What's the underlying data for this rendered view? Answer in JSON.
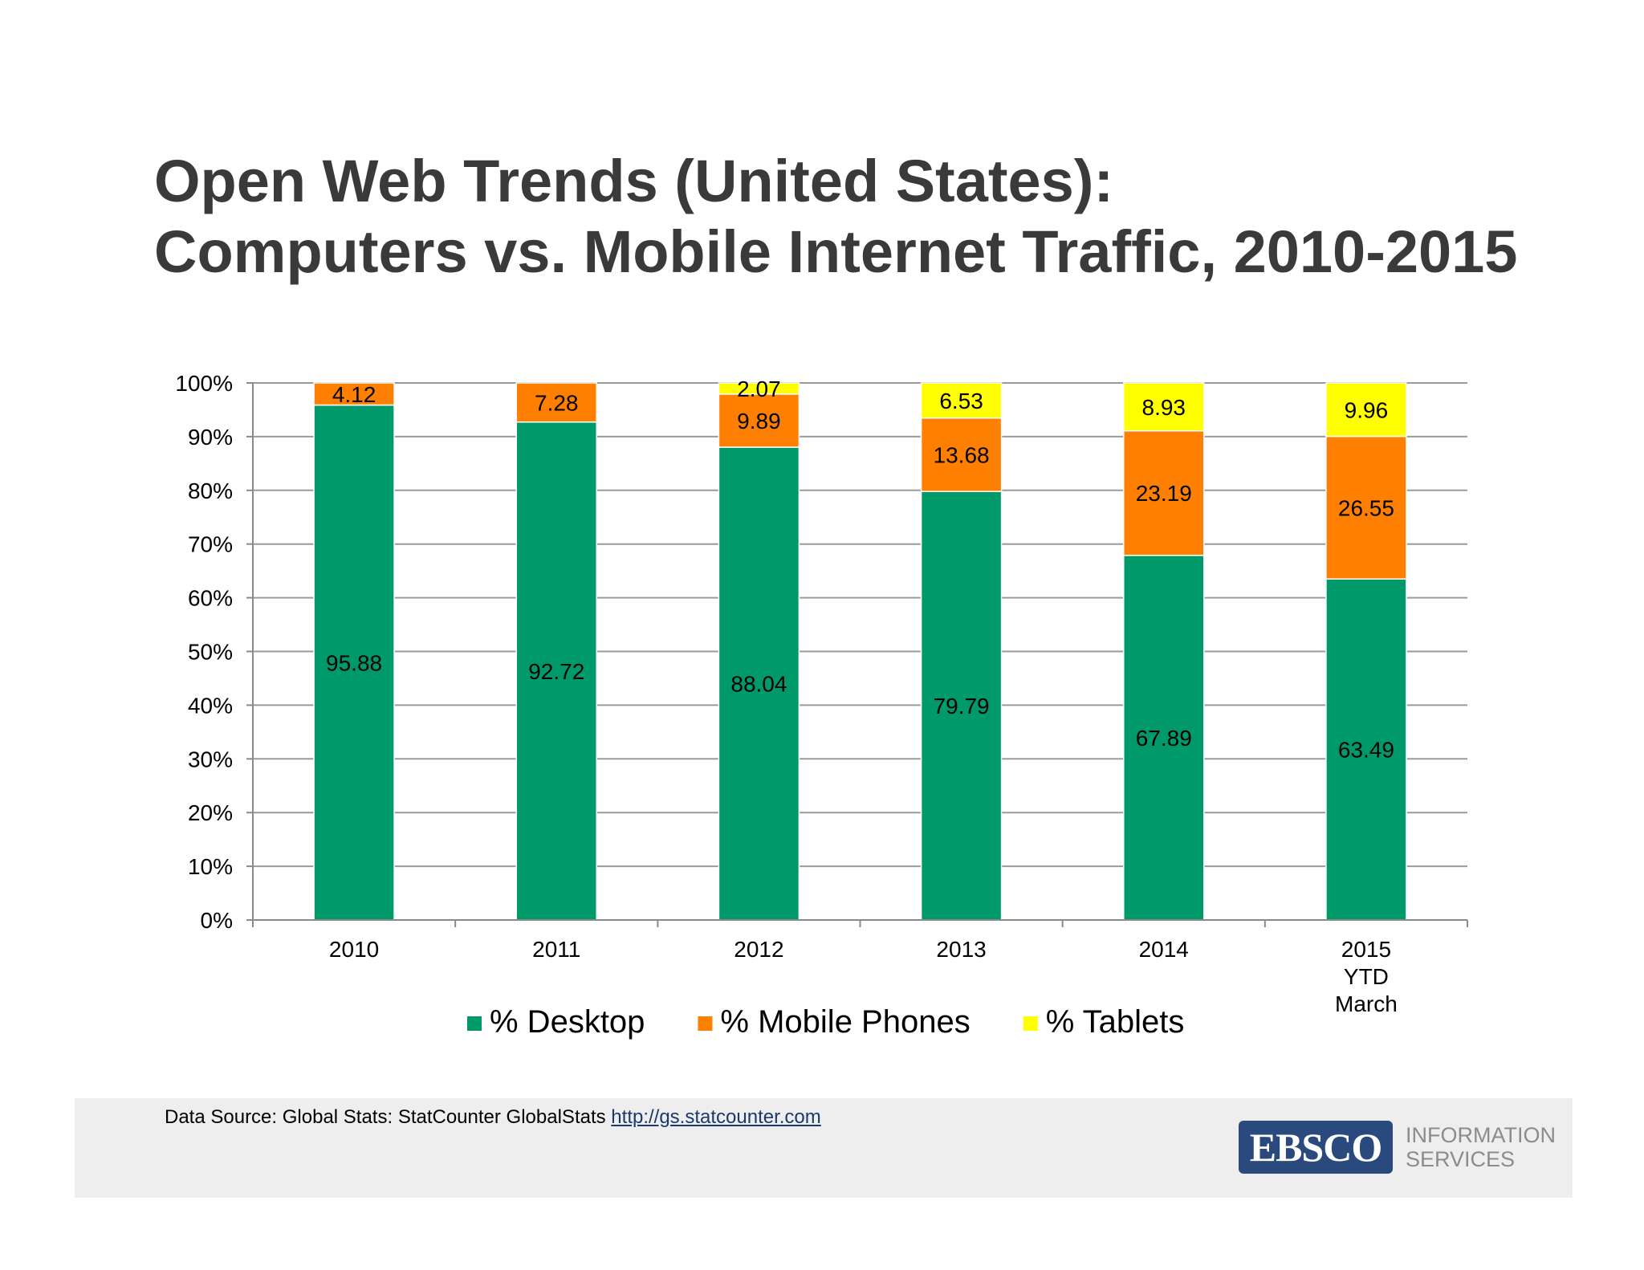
{
  "title_line1": "Open Web Trends (United States):",
  "title_line2": "Computers vs. Mobile Internet Traffic, 2010-2015",
  "chart_data": {
    "type": "bar",
    "stacked": true,
    "categories": [
      "2010",
      "2011",
      "2012",
      "2013",
      "2014",
      "2015 YTD March"
    ],
    "category_lines": [
      [
        "2010"
      ],
      [
        "2011"
      ],
      [
        "2012"
      ],
      [
        "2013"
      ],
      [
        "2014"
      ],
      [
        "2015",
        "YTD",
        "March"
      ]
    ],
    "series": [
      {
        "name": "% Desktop",
        "color": "#009a6a",
        "values": [
          95.88,
          92.72,
          88.04,
          79.79,
          67.89,
          63.49
        ],
        "labels": [
          "95.88",
          "92.72",
          "88.04",
          "79.79",
          "67.89",
          "63.49"
        ]
      },
      {
        "name": "% Mobile Phones",
        "color": "#ff7f00",
        "values": [
          4.12,
          7.28,
          9.89,
          13.68,
          23.19,
          26.55
        ],
        "labels": [
          "4.12",
          "7.28",
          "9.89",
          "13.68",
          "23.19",
          "26.55"
        ]
      },
      {
        "name": "% Tablets",
        "color": "#ffff00",
        "values": [
          0,
          0,
          2.07,
          6.53,
          8.93,
          9.96
        ],
        "labels": [
          "",
          "",
          "2.07",
          "6.53",
          "8.93",
          "9.96"
        ]
      }
    ],
    "ylim": [
      0,
      100
    ],
    "yticks": [
      0,
      10,
      20,
      30,
      40,
      50,
      60,
      70,
      80,
      90,
      100
    ],
    "ytick_labels": [
      "0%",
      "10%",
      "20%",
      "30%",
      "40%",
      "50%",
      "60%",
      "70%",
      "80%",
      "90%",
      "100%"
    ],
    "grid": true,
    "legend_position": "bottom",
    "xlabel": "",
    "ylabel": ""
  },
  "footer": {
    "source_text": "Data Source: Global Stats: StatCounter GlobalStats",
    "source_link": "http://gs.statcounter.com",
    "logo_main": "EBSCO",
    "logo_line1": "INFORMATION",
    "logo_line2": "SERVICES"
  }
}
